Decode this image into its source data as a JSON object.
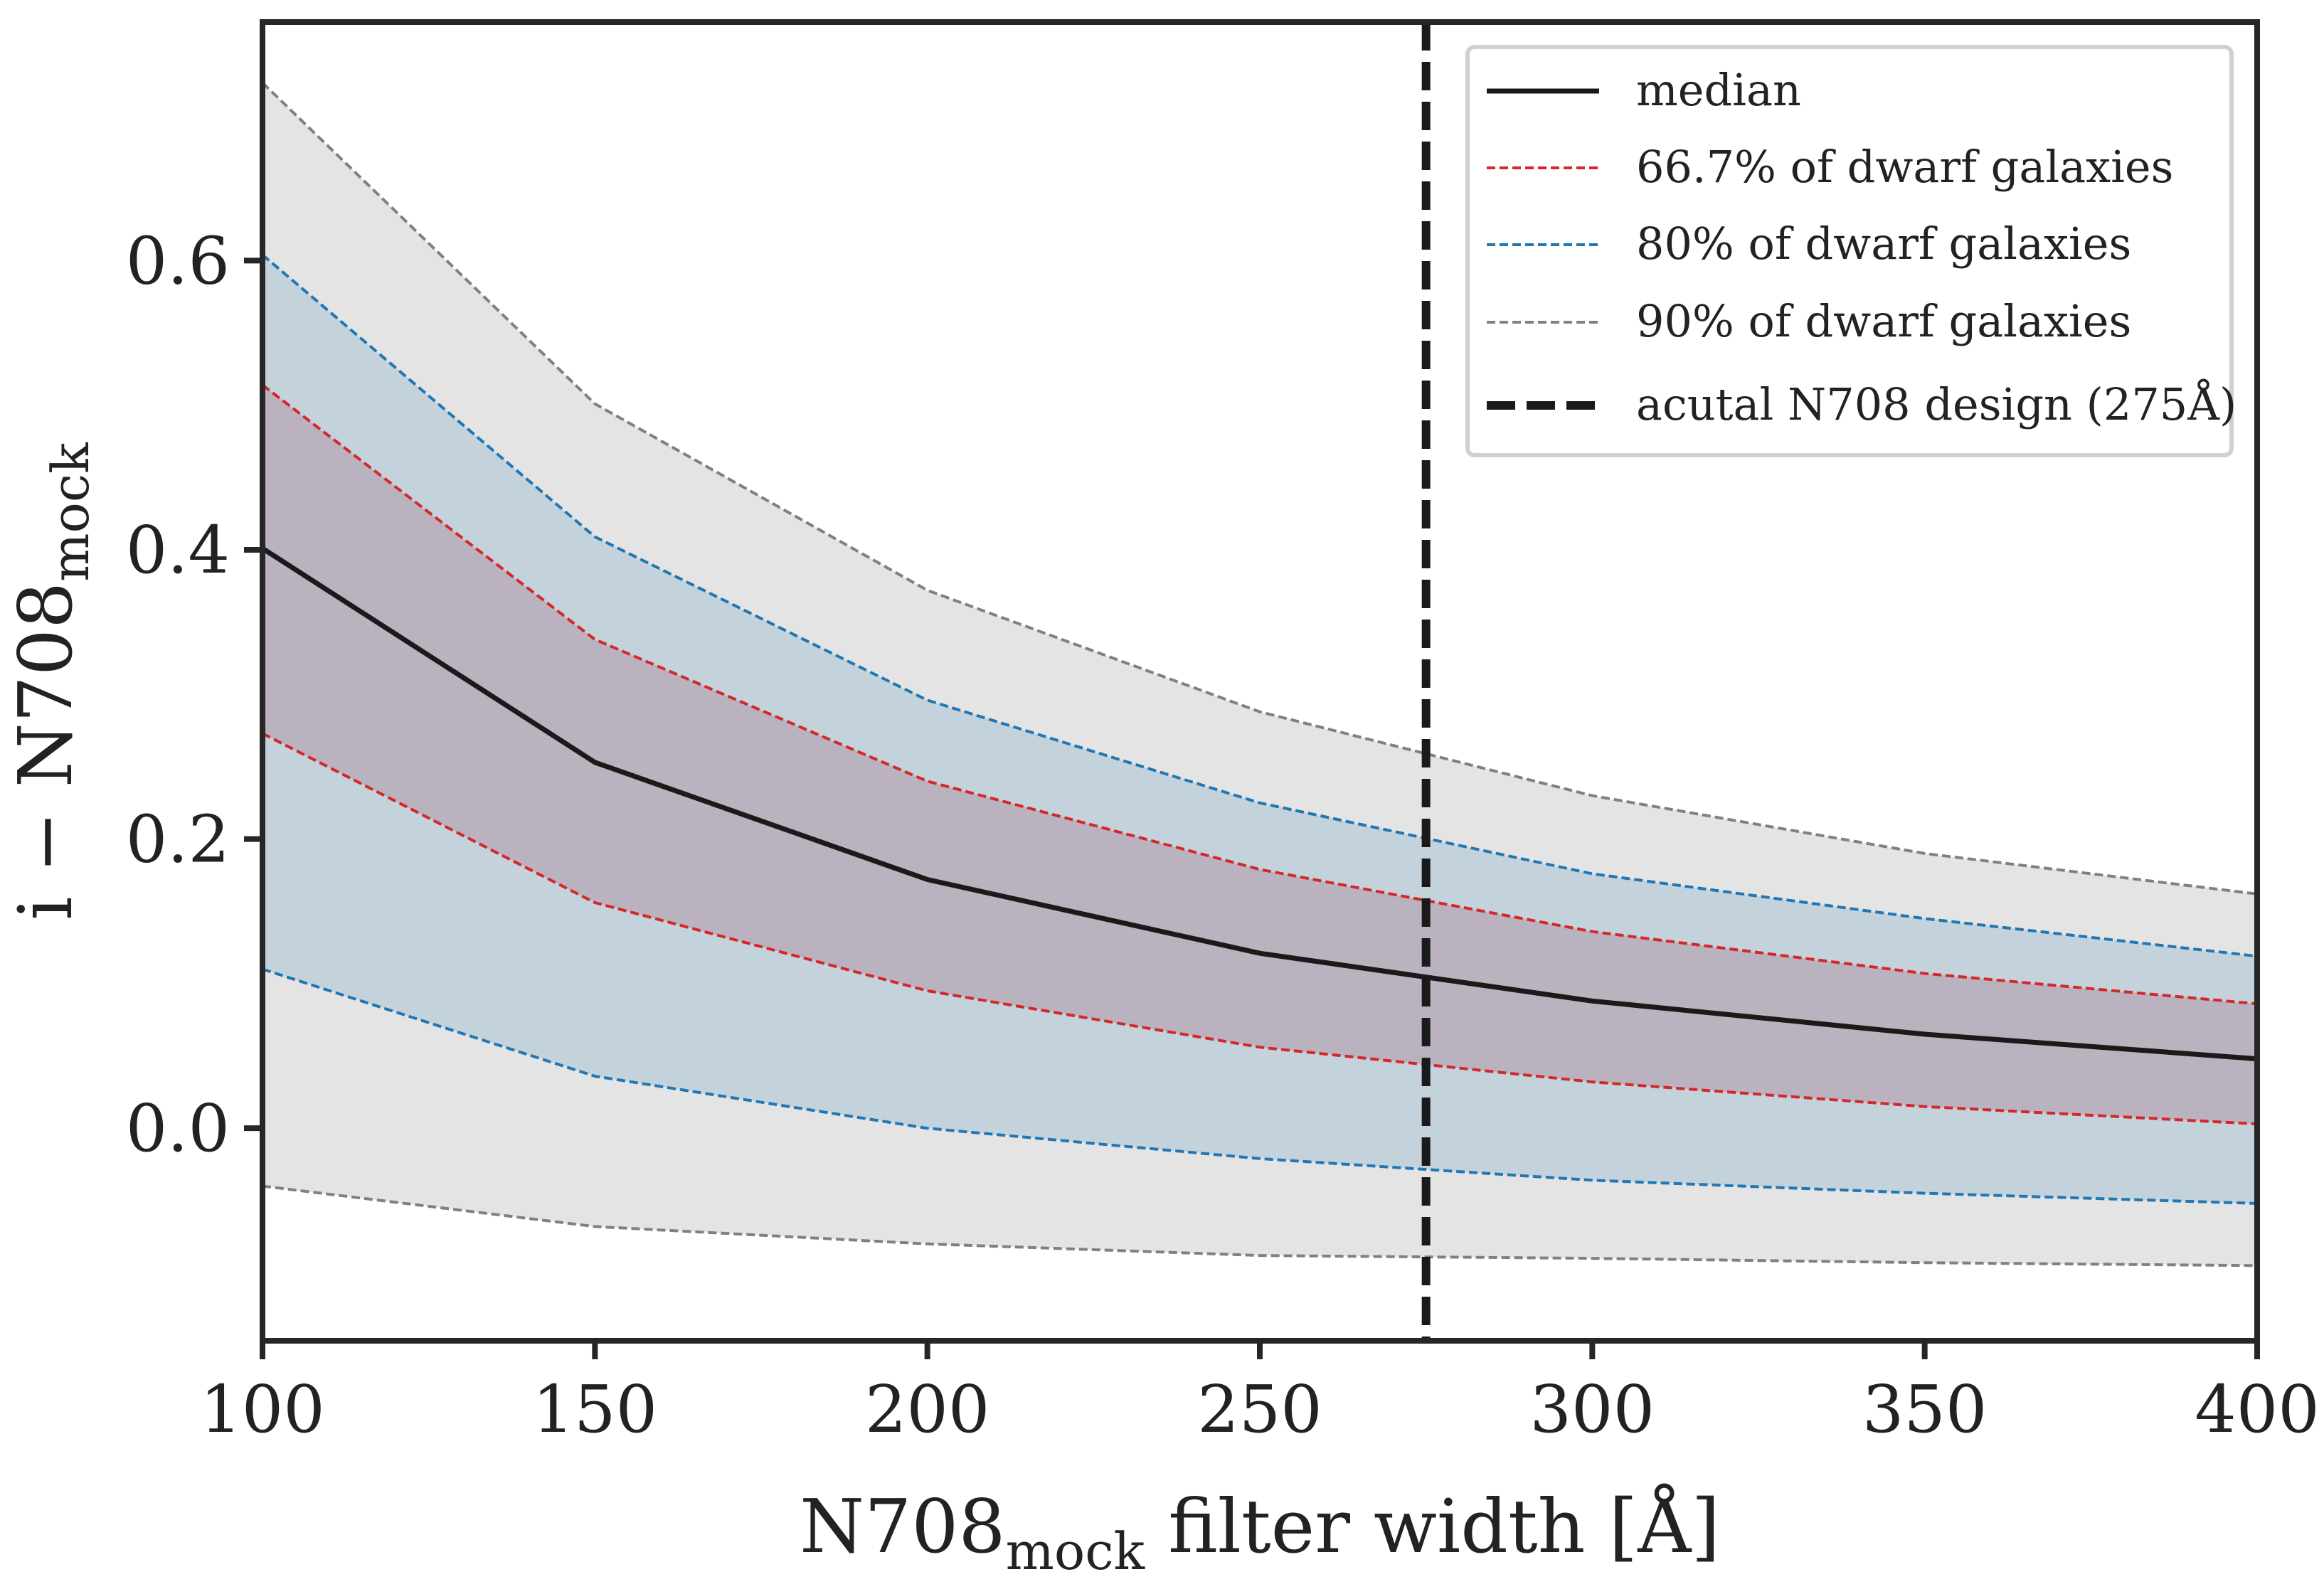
{
  "chart_data": {
    "type": "line",
    "title": "",
    "xlabel": {
      "main": "N708",
      "subscript": "mock",
      "rest": " filter width [Å]"
    },
    "ylabel": {
      "main": "i − N708",
      "subscript": "mock"
    },
    "xlim": [
      100,
      400
    ],
    "ylim": [
      -0.147,
      0.765
    ],
    "xticks": [
      100,
      150,
      200,
      250,
      300,
      350,
      400
    ],
    "xtick_labels": [
      "100",
      "150",
      "200",
      "250",
      "300",
      "350",
      "400"
    ],
    "yticks": [
      0.0,
      0.2,
      0.4,
      0.6
    ],
    "ytick_labels": [
      "0.0",
      "0.2",
      "0.4",
      "0.6"
    ],
    "grid": false,
    "legend_position": "top-right",
    "x": [
      100,
      150,
      200,
      250,
      300,
      350,
      400
    ],
    "median": {
      "name": "median",
      "color": "#1a1a1a",
      "values": [
        0.401,
        0.253,
        0.172,
        0.121,
        0.088,
        0.065,
        0.048
      ]
    },
    "bands": [
      {
        "name": "90% of dwarf galaxies",
        "color": "#808080",
        "fill": "#e4e4e4",
        "upper": [
          0.723,
          0.501,
          0.372,
          0.288,
          0.23,
          0.19,
          0.162
        ],
        "lower": [
          -0.04,
          -0.068,
          -0.08,
          -0.088,
          -0.09,
          -0.093,
          -0.095
        ]
      },
      {
        "name": "80% of dwarf galaxies",
        "color": "#1f77b4",
        "fill": "#c4d2dc",
        "upper": [
          0.604,
          0.409,
          0.296,
          0.225,
          0.176,
          0.145,
          0.119
        ],
        "lower": [
          0.11,
          0.036,
          0.0,
          -0.021,
          -0.036,
          -0.045,
          -0.052
        ]
      },
      {
        "name": "66.7% of dwarf galaxies",
        "color": "#d62728",
        "fill": "#bab2bf",
        "upper": [
          0.514,
          0.338,
          0.24,
          0.179,
          0.136,
          0.107,
          0.086
        ],
        "lower": [
          0.273,
          0.156,
          0.095,
          0.056,
          0.032,
          0.015,
          0.003
        ]
      }
    ],
    "vline": {
      "x": 275,
      "name": "acutal N708 design (275Å)",
      "color": "#1a1a1a"
    },
    "legend": [
      {
        "label": "median",
        "style": "solid",
        "color": "#1a1a1a"
      },
      {
        "label": "66.7% of dwarf galaxies",
        "style": "dashed",
        "color": "#d62728"
      },
      {
        "label": "80% of dwarf galaxies",
        "style": "dashed",
        "color": "#1f77b4"
      },
      {
        "label": "90% of dwarf galaxies",
        "style": "dashed",
        "color": "#808080"
      },
      {
        "label": "acutal N708 design (275Å)",
        "style": "thick-dashed",
        "color": "#1a1a1a"
      }
    ]
  }
}
